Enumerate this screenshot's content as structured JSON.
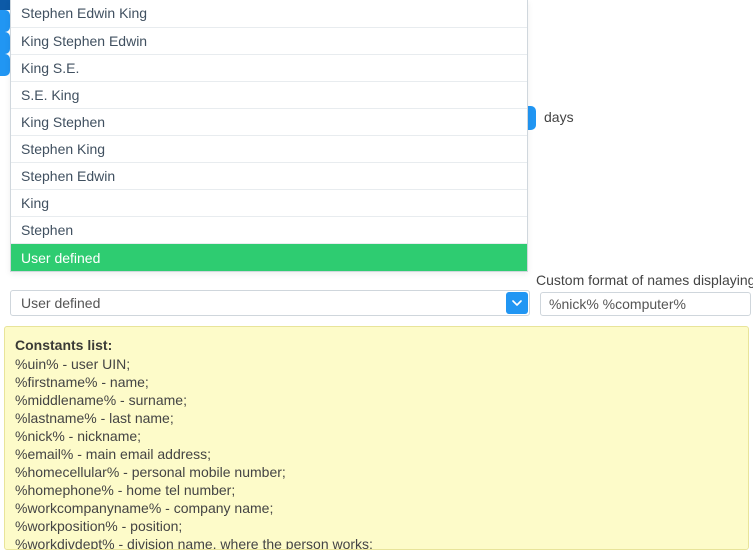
{
  "dropdown": {
    "items": [
      "Stephen Edwin King",
      "King Stephen Edwin",
      "King S.E.",
      "S.E. King",
      "King Stephen",
      "Stephen King",
      "Stephen Edwin",
      "King",
      "Stephen",
      "User defined"
    ],
    "selected_index": 9
  },
  "select": {
    "value": "User defined"
  },
  "right": {
    "days_label": "days",
    "custom_label": "Custom format of names displaying",
    "custom_value": "%nick% %computer%"
  },
  "help": {
    "title": "Constants list:",
    "lines": [
      "%uin% - user UIN;",
      "%firstname% - name;",
      "%middlename% - surname;",
      "%lastname% - last name;",
      "%nick% - nickname;",
      "%email% - main email address;",
      "%homecellular% - personal mobile number;",
      "%homephone% - home tel number;",
      "%workcompanyname% - company name;",
      "%workposition% - position;",
      "%workdivdept% - division name, where the person works;"
    ]
  },
  "colors": {
    "selected_bg": "#2ecc71",
    "accent_blue": "#2196f3",
    "dark_blue": "#0d5aa7",
    "help_bg": "#fdfbc9"
  }
}
